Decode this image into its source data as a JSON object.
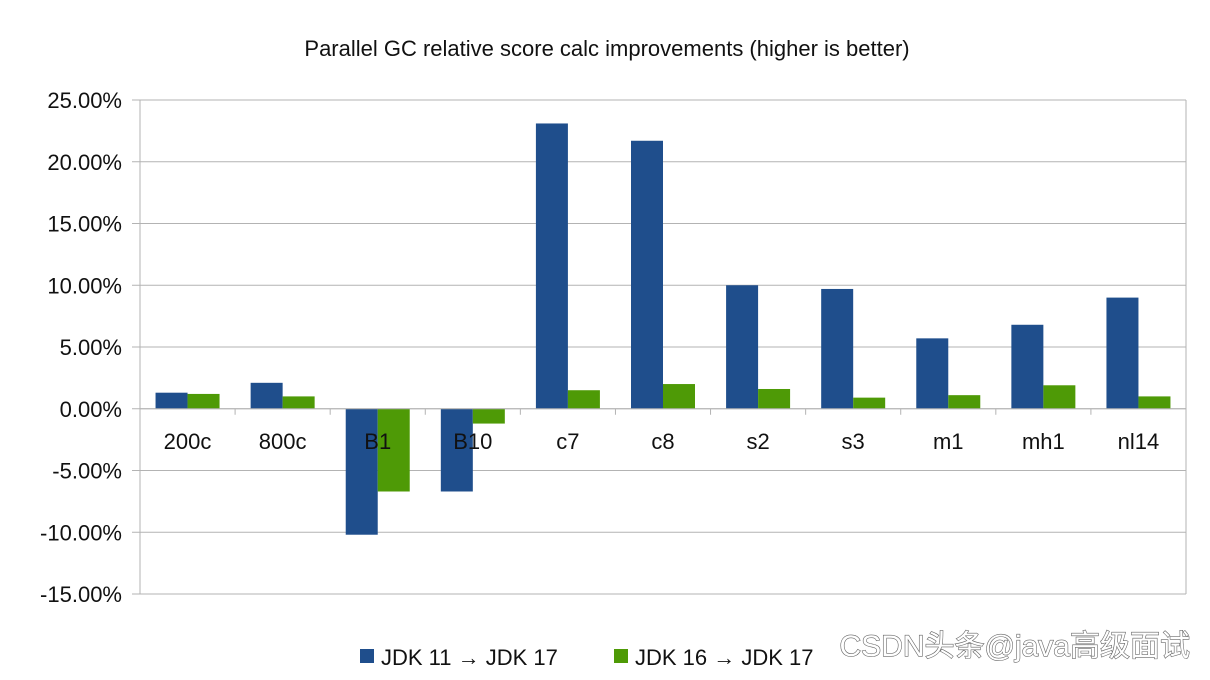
{
  "chart_data": {
    "type": "bar",
    "title": "Parallel GC relative score calc improvements (higher is better)",
    "categories": [
      "200c",
      "800c",
      "B1",
      "B10",
      "c7",
      "c8",
      "s2",
      "s3",
      "m1",
      "mh1",
      "nl14"
    ],
    "series": [
      {
        "name": "JDK 11 → JDK 17",
        "color": "#1f4e8c",
        "values": [
          1.3,
          2.1,
          -10.2,
          -6.7,
          23.1,
          21.7,
          10.0,
          9.7,
          5.7,
          6.8,
          9.0
        ]
      },
      {
        "name": "JDK 16 → JDK 17",
        "color": "#4e9a06",
        "values": [
          1.2,
          1.0,
          -6.7,
          -1.2,
          1.5,
          2.0,
          1.6,
          0.9,
          1.1,
          1.9,
          1.0
        ]
      }
    ],
    "ylim": [
      -15,
      25
    ],
    "yticks": [
      25,
      20,
      15,
      10,
      5,
      0,
      -5,
      -10,
      -15
    ],
    "ytick_labels": [
      "25.00%",
      "20.00%",
      "15.00%",
      "10.00%",
      "5.00%",
      "0.00%",
      "-5.00%",
      "-10.00%",
      "-15.00%"
    ],
    "xlabel": "",
    "ylabel": "",
    "grid": true,
    "legend_position": "bottom"
  },
  "watermark": {
    "text": "CSDN头条@java高级面试"
  }
}
